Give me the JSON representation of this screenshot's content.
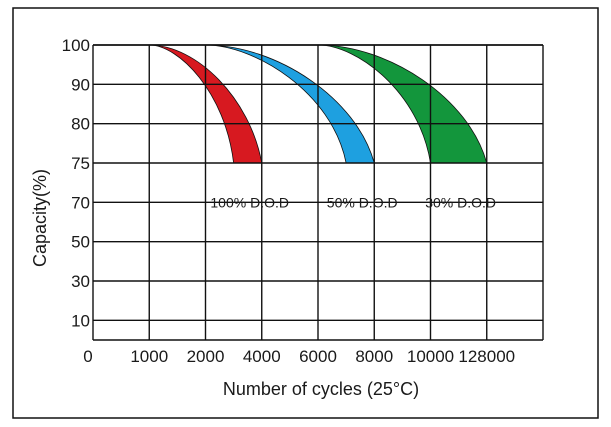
{
  "chart_data": {
    "type": "area",
    "title": "",
    "xlabel": "Number of cycles (25°C)",
    "ylabel": "Capacity(%)",
    "x_categories": [
      "0",
      "1000",
      "2000",
      "4000",
      "6000",
      "8000",
      "10000",
      "128000"
    ],
    "y_categories": [
      "10",
      "30",
      "50",
      "70",
      "75",
      "80",
      "90",
      "100"
    ],
    "grid": true,
    "series": [
      {
        "name": "100% D.O.D",
        "color": "#d71920",
        "upper_edge": [
          [
            1000,
            100
          ],
          [
            4000,
            75
          ]
        ],
        "lower_edge": [
          [
            1000,
            100
          ],
          [
            3000,
            75
          ]
        ]
      },
      {
        "name": "50% D.O.D",
        "color": "#1ea0e0",
        "upper_edge": [
          [
            2000,
            100
          ],
          [
            8000,
            75
          ]
        ],
        "lower_edge": [
          [
            2000,
            100
          ],
          [
            7000,
            75
          ]
        ]
      },
      {
        "name": "30% D.O.D",
        "color": "#13963c",
        "upper_edge": [
          [
            6000,
            100
          ],
          [
            128000,
            75
          ]
        ],
        "lower_edge": [
          [
            6000,
            100
          ],
          [
            10000,
            75
          ]
        ]
      }
    ]
  },
  "colors": {
    "grid": "#111111",
    "frame": "#111111",
    "background": "#ffffff"
  }
}
